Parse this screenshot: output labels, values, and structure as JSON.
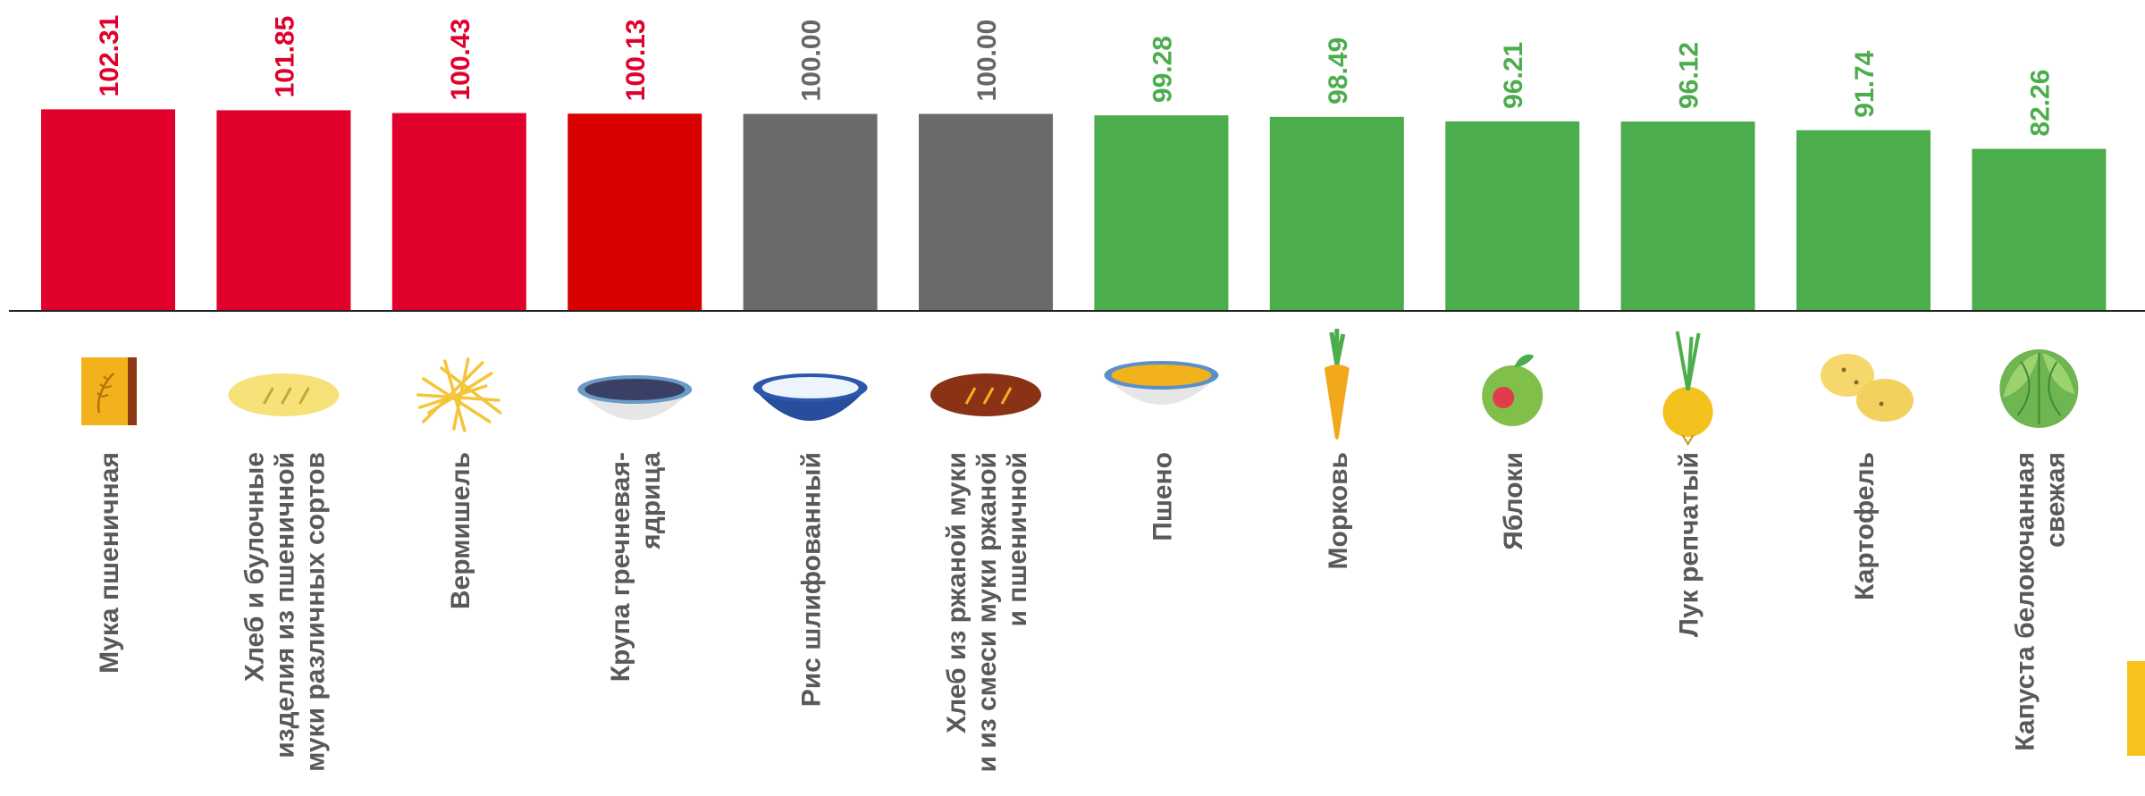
{
  "chart_data": {
    "type": "bar",
    "title": "",
    "xlabel": "",
    "ylabel": "",
    "ylim": [
      0,
      103
    ],
    "grid": false,
    "legend": "none",
    "categories": [
      [
        "Мука пшеничная"
      ],
      [
        "Хлеб и булочные",
        "изделия из пшеничной",
        "муки различных сортов"
      ],
      [
        "Вермишель"
      ],
      [
        "Крупа гречневая-",
        "ядрица"
      ],
      [
        "Рис шлифованный"
      ],
      [
        "Хлеб из ржаной муки",
        "и из смеси муки ржаной",
        "и пшеничной"
      ],
      [
        "Пшено"
      ],
      [
        "Морковь"
      ],
      [
        "Яблоки"
      ],
      [
        "Лук репчатый"
      ],
      [
        "Картофель"
      ],
      [
        "Капуста белокочанная",
        "свежая"
      ]
    ],
    "values": [
      102.31,
      101.85,
      100.43,
      100.13,
      100.0,
      100.0,
      99.28,
      98.49,
      96.21,
      96.12,
      91.74,
      82.26
    ],
    "value_labels": [
      "102.31",
      "101.85",
      "100.43",
      "100.13",
      "100.00",
      "100.00",
      "99.28",
      "98.49",
      "96.21",
      "96.12",
      "91.74",
      "82.26"
    ],
    "bar_colors": [
      "#e0002b",
      "#e0002b",
      "#e0002b",
      "#d90000",
      "#6a6a6a",
      "#6a6a6a",
      "#4cad4d",
      "#4cad4d",
      "#4cad4d",
      "#4cad4d",
      "#4cad4d",
      "#4cad4d"
    ],
    "label_colors": [
      "#e0002b",
      "#e0002b",
      "#e0002b",
      "#e0002b",
      "#666666",
      "#666666",
      "#4cad4d",
      "#4cad4d",
      "#4cad4d",
      "#4cad4d",
      "#4cad4d",
      "#4cad4d"
    ],
    "icons": [
      "flour-bag-icon",
      "wheat-loaf-icon",
      "vermicelli-icon",
      "buckwheat-bowl-icon",
      "rice-bowl-icon",
      "rye-bread-icon",
      "millet-bowl-icon",
      "carrot-icon",
      "apple-icon",
      "onion-icon",
      "potato-icon",
      "cabbage-icon"
    ]
  }
}
